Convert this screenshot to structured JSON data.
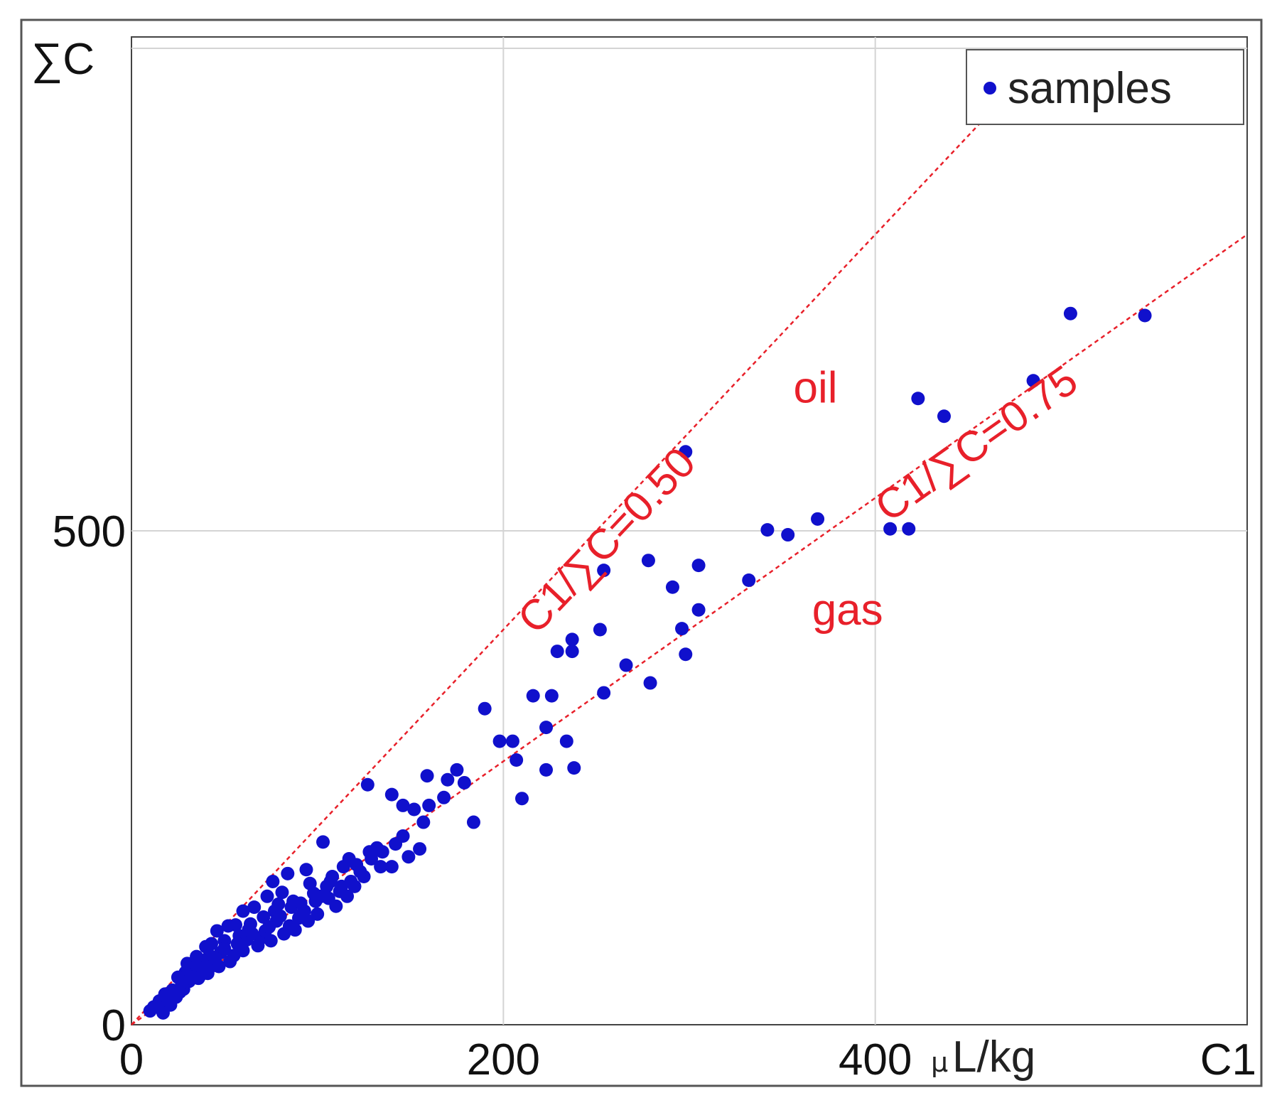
{
  "chart_data": {
    "type": "scatter",
    "xlabel": "C1",
    "ylabel": "∑C",
    "x_unit_mu": "µ",
    "x_unit_rest": "L/kg",
    "xlim": [
      0,
      600
    ],
    "ylim": [
      0,
      1000
    ],
    "x_ticks": [
      0,
      200,
      400
    ],
    "y_ticks": [
      0,
      500
    ],
    "grid": true,
    "legend": {
      "position": "top-right",
      "entries": [
        "samples"
      ]
    },
    "series": [
      {
        "name": "samples",
        "color": "#1010cc",
        "points": [
          [
            545,
            718
          ],
          [
            505,
            720
          ],
          [
            485,
            652
          ],
          [
            423,
            634
          ],
          [
            437,
            616
          ],
          [
            298,
            580
          ],
          [
            408,
            502
          ],
          [
            418,
            502
          ],
          [
            342,
            501
          ],
          [
            353,
            496
          ],
          [
            369,
            512
          ],
          [
            332,
            450
          ],
          [
            305,
            465
          ],
          [
            278,
            470
          ],
          [
            291,
            443
          ],
          [
            254,
            460
          ],
          [
            305,
            420
          ],
          [
            296,
            401
          ],
          [
            252,
            400
          ],
          [
            298,
            375
          ],
          [
            237,
            390
          ],
          [
            237,
            378
          ],
          [
            229,
            378
          ],
          [
            266,
            364
          ],
          [
            279,
            346
          ],
          [
            254,
            336
          ],
          [
            190,
            320
          ],
          [
            216,
            333
          ],
          [
            226,
            333
          ],
          [
            223,
            301
          ],
          [
            198,
            287
          ],
          [
            205,
            287
          ],
          [
            234,
            287
          ],
          [
            207,
            268
          ],
          [
            223,
            258
          ],
          [
            238,
            260
          ],
          [
            159,
            252
          ],
          [
            170,
            248
          ],
          [
            175,
            258
          ],
          [
            179,
            245
          ],
          [
            210,
            229
          ],
          [
            184,
            205
          ],
          [
            127,
            243
          ],
          [
            140,
            233
          ],
          [
            146,
            222
          ],
          [
            152,
            218
          ],
          [
            157,
            205
          ],
          [
            146,
            191
          ],
          [
            142,
            183
          ],
          [
            132,
            179
          ],
          [
            155,
            178
          ],
          [
            149,
            170
          ],
          [
            140,
            160
          ],
          [
            129,
            168
          ],
          [
            121,
            162
          ],
          [
            103,
            185
          ],
          [
            94,
            157
          ],
          [
            84,
            153
          ],
          [
            96,
            143
          ],
          [
            105,
            140
          ],
          [
            112,
            135
          ],
          [
            116,
            130
          ],
          [
            106,
            128
          ],
          [
            99,
            125
          ],
          [
            91,
            123
          ],
          [
            76,
            145
          ],
          [
            81,
            134
          ],
          [
            73,
            130
          ],
          [
            86,
            119
          ],
          [
            77,
            115
          ],
          [
            66,
            119
          ],
          [
            71,
            109
          ],
          [
            78,
            105
          ],
          [
            60,
            115
          ],
          [
            64,
            102
          ],
          [
            56,
            101
          ],
          [
            52,
            100
          ],
          [
            46,
            95
          ],
          [
            58,
            90
          ],
          [
            62,
            86
          ],
          [
            50,
            85
          ],
          [
            43,
            82
          ],
          [
            40,
            79
          ],
          [
            48,
            73
          ],
          [
            42,
            70
          ],
          [
            35,
            69
          ],
          [
            38,
            65
          ],
          [
            30,
            62
          ],
          [
            44,
            60
          ],
          [
            33,
            57
          ],
          [
            29,
            53
          ],
          [
            37,
            50
          ],
          [
            25,
            48
          ],
          [
            31,
            44
          ],
          [
            27,
            40
          ],
          [
            22,
            35
          ],
          [
            18,
            31
          ],
          [
            24,
            28
          ],
          [
            15,
            24
          ],
          [
            21,
            20
          ],
          [
            12,
            18
          ],
          [
            17,
            12
          ],
          [
            10,
            14
          ],
          [
            110,
            120
          ],
          [
            125,
            150
          ],
          [
            120,
            140
          ],
          [
            100,
            112
          ],
          [
            95,
            105
          ],
          [
            90,
            108
          ],
          [
            88,
            96
          ],
          [
            82,
            92
          ],
          [
            70,
            88
          ],
          [
            68,
            80
          ],
          [
            75,
            85
          ],
          [
            55,
            70
          ],
          [
            53,
            64
          ],
          [
            47,
            59
          ],
          [
            41,
            52
          ],
          [
            36,
            47
          ],
          [
            28,
            36
          ],
          [
            26,
            33
          ],
          [
            20,
            26
          ],
          [
            14,
            18
          ],
          [
            50,
            77
          ],
          [
            60,
            75
          ],
          [
            65,
            92
          ],
          [
            72,
            95
          ],
          [
            80,
            110
          ],
          [
            85,
            100
          ],
          [
            93,
            115
          ],
          [
            98,
            133
          ],
          [
            108,
            150
          ],
          [
            114,
            160
          ],
          [
            118,
            145
          ],
          [
            123,
            155
          ],
          [
            135,
            175
          ],
          [
            160,
            222
          ],
          [
            168,
            230
          ],
          [
            45,
            67
          ],
          [
            39,
            58
          ],
          [
            32,
            48
          ],
          [
            57,
            82
          ],
          [
            63,
            96
          ],
          [
            74,
            99
          ],
          [
            79,
            122
          ],
          [
            87,
            125
          ],
          [
            92,
            112
          ],
          [
            102,
            130
          ],
          [
            107,
            145
          ],
          [
            113,
            140
          ],
          [
            117,
            168
          ],
          [
            128,
            175
          ],
          [
            134,
            160
          ]
        ]
      }
    ],
    "reference_lines": [
      {
        "ratio": 0.5,
        "label": "C1/∑C=0.50",
        "color": "#e8202a"
      },
      {
        "ratio": 0.75,
        "label": "C1/∑C=0.75",
        "color": "#e8202a"
      }
    ],
    "region_labels": [
      {
        "text": "oil",
        "x": 356,
        "y": 630
      },
      {
        "text": "gas",
        "x": 366,
        "y": 405
      }
    ]
  }
}
